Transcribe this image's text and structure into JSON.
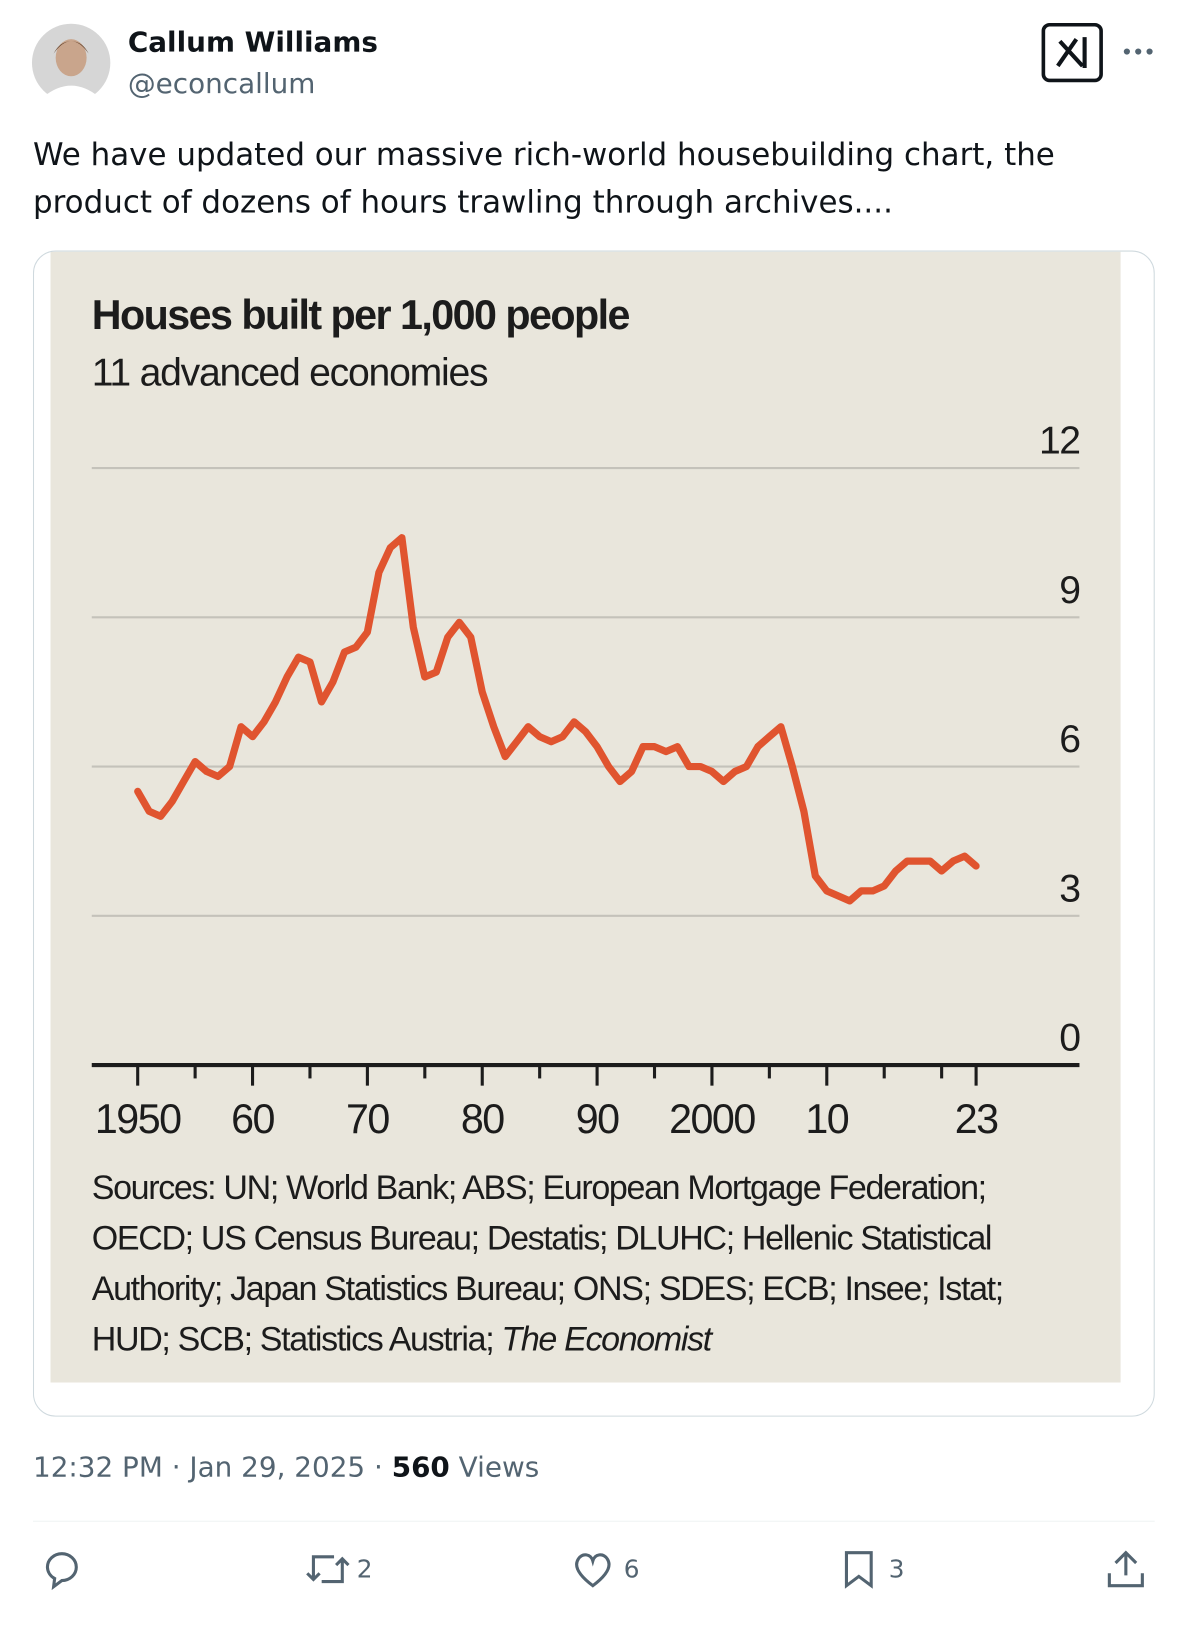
{
  "tweet": {
    "name": "Callum Williams",
    "handle": "@econcallum",
    "text": "We have updated our massive rich-world housebuilding chart, the product of dozens of hours trawling through archives....",
    "time": "12:32 PM · Jan 29, 2025 ·",
    "views": 560,
    "views_label": "Views",
    "retweets": 2,
    "likes": 6,
    "bookmarks": 3
  },
  "chart_data": {
    "type": "line",
    "title": "Houses built per 1,000 people",
    "subtitle": "11 advanced economies",
    "x": [
      1950,
      1951,
      1952,
      1953,
      1954,
      1955,
      1956,
      1957,
      1958,
      1959,
      1960,
      1961,
      1962,
      1963,
      1964,
      1965,
      1966,
      1967,
      1968,
      1969,
      1970,
      1971,
      1972,
      1973,
      1974,
      1975,
      1976,
      1977,
      1978,
      1979,
      1980,
      1981,
      1982,
      1983,
      1984,
      1985,
      1986,
      1987,
      1988,
      1989,
      1990,
      1991,
      1992,
      1993,
      1994,
      1995,
      1996,
      1997,
      1998,
      1999,
      2000,
      2001,
      2002,
      2003,
      2004,
      2005,
      2006,
      2007,
      2008,
      2009,
      2010,
      2011,
      2012,
      2013,
      2014,
      2015,
      2016,
      2017,
      2018,
      2019,
      2020,
      2021,
      2022,
      2023
    ],
    "values": [
      5.5,
      5.1,
      5.0,
      5.3,
      5.7,
      6.1,
      5.9,
      5.8,
      6.0,
      6.8,
      6.6,
      6.9,
      7.3,
      7.8,
      8.2,
      8.1,
      7.3,
      7.7,
      8.3,
      8.4,
      8.7,
      9.9,
      10.4,
      10.6,
      8.8,
      7.8,
      7.9,
      8.6,
      8.9,
      8.6,
      7.5,
      6.8,
      6.2,
      6.5,
      6.8,
      6.6,
      6.5,
      6.6,
      6.9,
      6.7,
      6.4,
      6.0,
      5.7,
      5.9,
      6.4,
      6.4,
      6.3,
      6.4,
      6.0,
      6.0,
      5.9,
      5.7,
      5.9,
      6.0,
      6.4,
      6.6,
      6.8,
      6.0,
      5.1,
      3.8,
      3.5,
      3.4,
      3.3,
      3.5,
      3.5,
      3.6,
      3.9,
      4.1,
      4.1,
      4.1,
      3.9,
      4.1,
      4.2,
      4.0
    ],
    "color": "#e0542f",
    "xlim": [
      1946,
      2032
    ],
    "ylim": [
      0,
      12
    ],
    "xticks": [
      {
        "value": 1950,
        "label": "1950"
      },
      {
        "value": 1960,
        "label": "60"
      },
      {
        "value": 1970,
        "label": "70"
      },
      {
        "value": 1980,
        "label": "80"
      },
      {
        "value": 1990,
        "label": "90"
      },
      {
        "value": 2000,
        "label": "2000"
      },
      {
        "value": 2010,
        "label": "10"
      },
      {
        "value": 2023,
        "label": "23"
      }
    ],
    "xminor": [
      1955,
      1965,
      1975,
      1985,
      1995,
      2005,
      2015,
      2020
    ],
    "yticks": [
      0,
      3,
      6,
      9,
      12
    ],
    "grid": true,
    "sources": "Sources: UN; World Bank; ABS; European Mortgage Federation; OECD; US Census Bureau; Destatis; DLUHC; Hellenic Statistical Authority; Japan Statistics Bureau; ONS; SDES; ECB; Insee; Istat; HUD; SCB; Statistics Austria;",
    "sources_italic": "The Economist"
  }
}
